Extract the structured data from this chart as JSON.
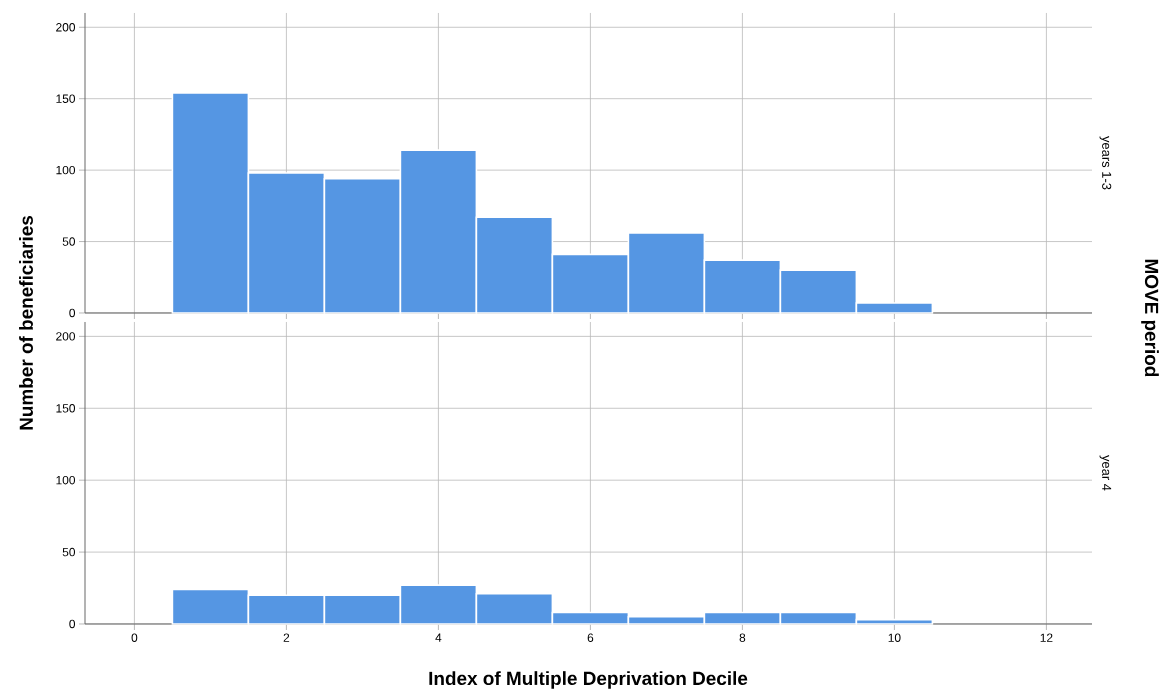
{
  "chart_data": [
    {
      "type": "histogram",
      "annotations": [
        "years 1-3"
      ],
      "ylabel": "Number of beneficiaries",
      "y2label": "MOVE period",
      "bins": [
        0.5,
        1.5,
        2.5,
        3.5,
        4.5,
        5.5,
        6.5,
        7.5,
        8.5,
        9.5,
        10.5
      ],
      "values": [
        154,
        98,
        94,
        114,
        67,
        41,
        56,
        37,
        30,
        7
      ],
      "color": "#5596e3",
      "xlim": [
        -0.65,
        12.6
      ],
      "ylim": [
        0,
        210
      ],
      "xticks": [
        0,
        2,
        4,
        6,
        8,
        10,
        12
      ],
      "yticks": [
        0,
        50,
        100,
        150,
        200
      ],
      "grid": true,
      "tick_labels": "y"
    },
    {
      "type": "histogram",
      "annotations": [
        "year 4"
      ],
      "xlabel": "Index of Multiple Deprivation Decile",
      "bins": [
        0.5,
        1.5,
        2.5,
        3.5,
        4.5,
        5.5,
        6.5,
        7.5,
        8.5,
        9.5,
        10.5
      ],
      "values": [
        24,
        20,
        20,
        27,
        21,
        8,
        5,
        8,
        8,
        3
      ],
      "color": "#5596e3",
      "xlim": [
        -0.65,
        12.6
      ],
      "ylim": [
        0,
        210
      ],
      "xticks": [
        0,
        2,
        4,
        6,
        8,
        10,
        12
      ],
      "yticks": [
        0,
        50,
        100,
        150,
        200
      ],
      "grid": true
    }
  ]
}
